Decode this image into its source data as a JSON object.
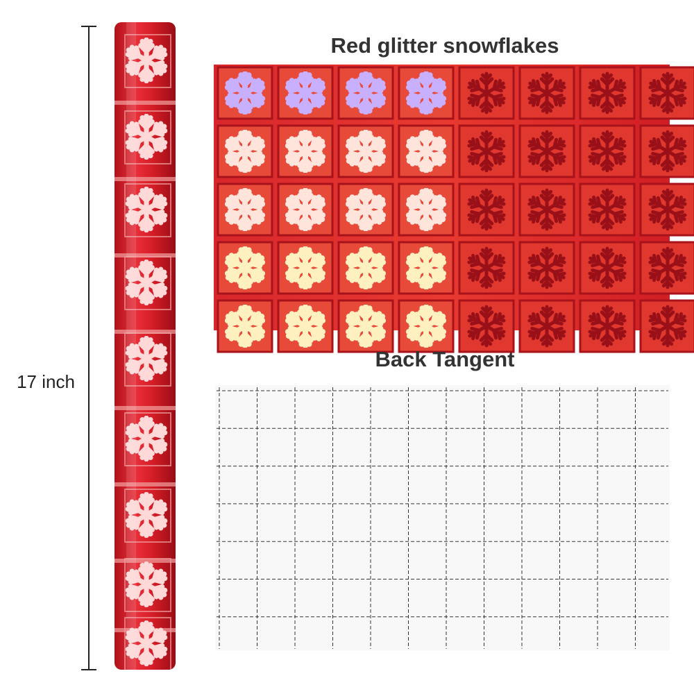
{
  "dimension_label": "17 inch",
  "front": {
    "title": "Red glitter snowflakes"
  },
  "back": {
    "title": "Back Tangent"
  }
}
